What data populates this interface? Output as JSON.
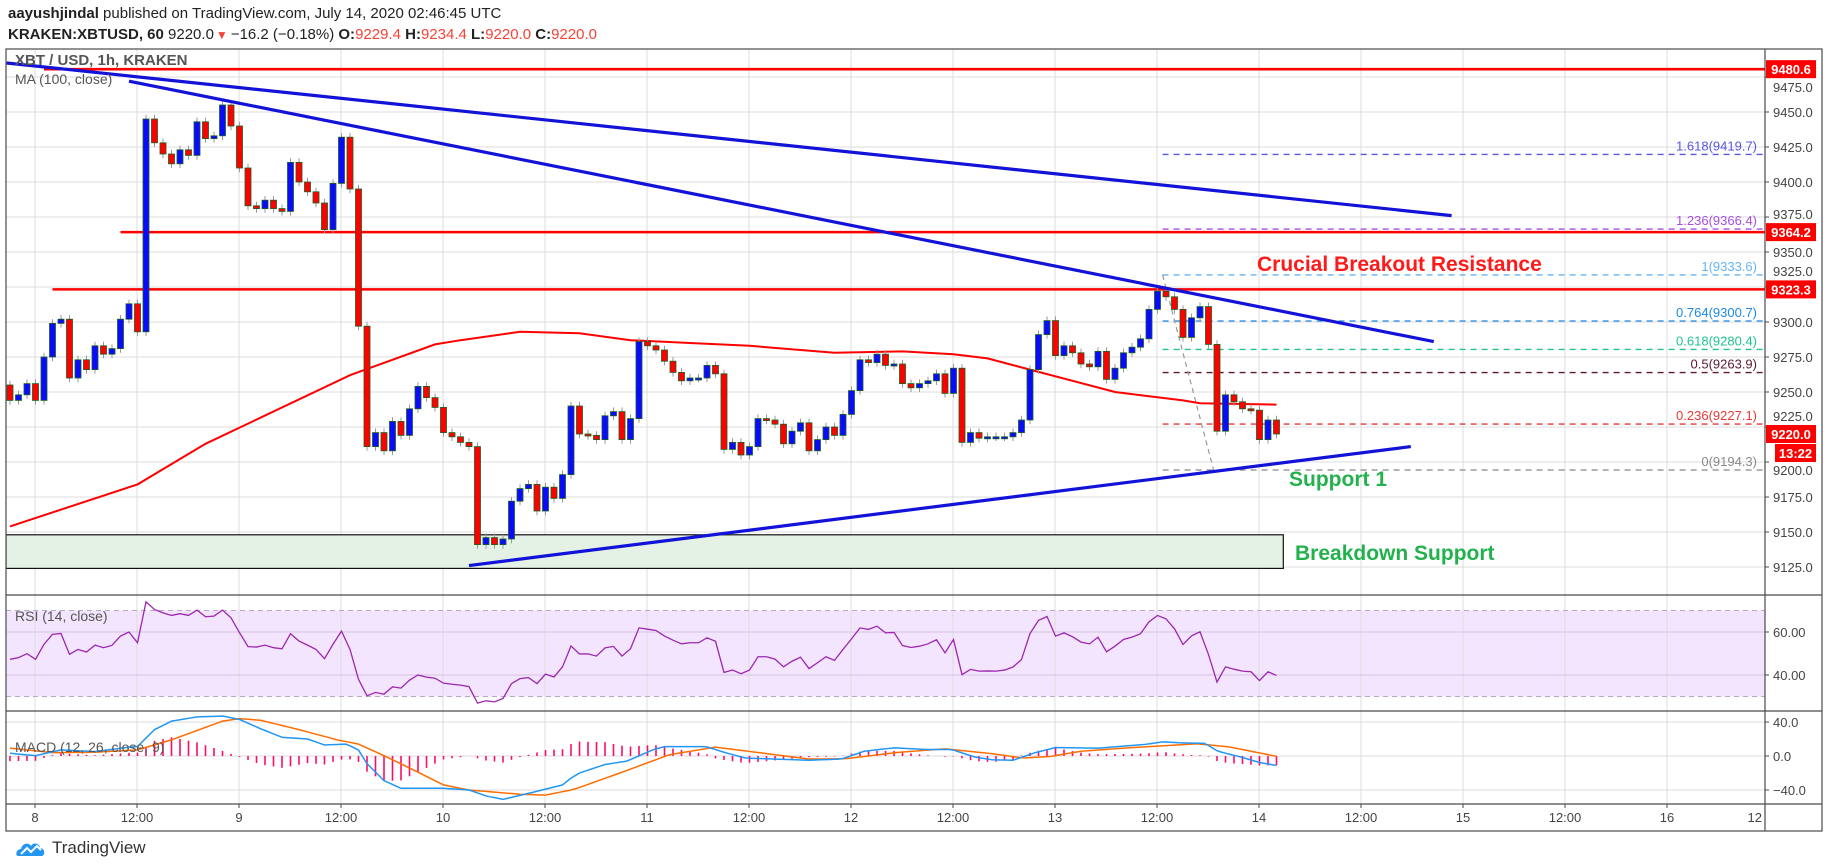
{
  "header": {
    "author": "aayushjindal",
    "published": "published on TradingView.com, July 14, 2020 02:46:45 UTC",
    "symbol": "KRAKEN:XBTUSD, 60",
    "last": "9220.0",
    "direction_icon": "triangle-down-icon",
    "change": "−16.2 (−0.18%)",
    "o_label": "O:",
    "o": "9229.4",
    "h_label": "H:",
    "h": "9234.4",
    "l_label": "L:",
    "l": "9220.0",
    "c_label": "C:",
    "c": "9220.0"
  },
  "chart": {
    "title": "XBT / USD, 1h, KRAKEN",
    "ma_label": "MA (100, close)",
    "rsi_label": "RSI (14, close)",
    "macd_label": "MACD (12, 26, close, 9)"
  },
  "colors": {
    "up_candle": "#0a0aff",
    "down_candle": "#ff0000",
    "candle_border": "#1b5e20",
    "ma": "#ff0000",
    "trendline": "#1212d8",
    "level": "#ff0000",
    "rsi": "#9c27b0",
    "rsi_band": "#f3e5fd",
    "macd": "#2196f3",
    "signal": "#ff6d00",
    "histogram": "#ff0a6c",
    "support_zone": "#e4f2e5",
    "resistance_text": "#ff1a1a",
    "support_text": "#22b14c"
  },
  "price_axis": {
    "ticks": [
      "9125.0",
      "9150.0",
      "9175.0",
      "9200.0",
      "9225.0",
      "9250.0",
      "9275.0",
      "9300.0",
      "9325.0",
      "9350.0",
      "9375.0",
      "9400.0",
      "9425.0",
      "9450.0",
      "9475.0"
    ]
  },
  "rsi_axis": {
    "ticks": [
      "60.00",
      "40.00"
    ],
    "upper": 70,
    "lower": 30
  },
  "macd_axis": {
    "ticks": [
      "40.0",
      "0.0",
      "−40.0"
    ]
  },
  "time_axis": {
    "labels": [
      "8",
      "12:00",
      "9",
      "12:00",
      "10",
      "12:00",
      "11",
      "12:00",
      "12",
      "12:00",
      "13",
      "12:00",
      "14",
      "12:00",
      "15",
      "12:00",
      "16",
      "12"
    ]
  },
  "price_tags": [
    {
      "label": "9480.6",
      "price": 9480.6
    },
    {
      "label": "9364.2",
      "price": 9364.2
    },
    {
      "label": "9323.3",
      "price": 9323.3
    },
    {
      "label": "9220.0",
      "price": 9220.0
    }
  ],
  "countdown": "13:22",
  "candles": {
    "first_open": 9255,
    "closes": [
      9244,
      9248,
      9256,
      9244,
      9275,
      9299,
      9302,
      9260,
      9273,
      9266,
      9283,
      9277,
      9281,
      9302,
      9313,
      9293,
      9445,
      9428,
      9420,
      9413,
      9423,
      9419,
      9443,
      9431,
      9433,
      9455,
      9440,
      9410,
      9383,
      9381,
      9387,
      9381,
      9379,
      9414,
      9400,
      9393,
      9385,
      9366,
      9399,
      9432,
      9395,
      9297,
      9211,
      9221,
      9208,
      9229,
      9219,
      9238,
      9254,
      9246,
      9239,
      9221,
      9218,
      9214,
      9211,
      9141,
      9146,
      9141,
      9145,
      9172,
      9181,
      9184,
      9165,
      9182,
      9174,
      9191,
      9240,
      9220,
      9219,
      9216,
      9233,
      9236,
      9216,
      9231,
      9286,
      9283,
      9280,
      9272,
      9264,
      9258,
      9260,
      9260,
      9269,
      9263,
      9209,
      9214,
      9205,
      9211,
      9231,
      9230,
      9227,
      9213,
      9222,
      9228,
      9208,
      9216,
      9225,
      9219,
      9234,
      9251,
      9273,
      9271,
      9277,
      9269,
      9270,
      9256,
      9253,
      9256,
      9258,
      9263,
      9249,
      9267,
      9214,
      9221,
      9217,
      9218,
      9218,
      9218,
      9221,
      9230,
      9266,
      9291,
      9301,
      9276,
      9283,
      9278,
      9270,
      9268,
      9279,
      9259,
      9267,
      9278,
      9282,
      9288,
      9309,
      9322,
      9318,
      9309,
      9289,
      9303,
      9311,
      9284,
      9222,
      9248,
      9243,
      9238,
      9237,
      9216,
      9230,
      9220
    ]
  },
  "ma100": [
    [
      0,
      9154
    ],
    [
      15,
      9184
    ],
    [
      23,
      9213
    ],
    [
      40,
      9262
    ],
    [
      50,
      9284
    ],
    [
      53,
      9287
    ],
    [
      60,
      9293
    ],
    [
      67,
      9292
    ],
    [
      73,
      9287
    ],
    [
      80,
      9285
    ],
    [
      87,
      9283
    ],
    [
      97,
      9278
    ],
    [
      105,
      9279
    ],
    [
      111,
      9277
    ],
    [
      115,
      9274
    ],
    [
      120,
      9266
    ],
    [
      130,
      9250
    ],
    [
      138,
      9244
    ],
    [
      140,
      9242
    ],
    [
      149,
      9241
    ]
  ],
  "rsi": [
    47.3,
    48.1,
    49.9,
    47.3,
    54.3,
    58.9,
    59.3,
    49.6,
    51.9,
    50.7,
    53.9,
    52.7,
    53.8,
    58.1,
    60,
    55,
    74,
    70.5,
    68.9,
    67.7,
    68.5,
    67.7,
    70.2,
    67.1,
    67.4,
    70.2,
    66.6,
    59.7,
    53.2,
    53,
    53.9,
    52.7,
    52.2,
    59.2,
    55.8,
    53.9,
    51.9,
    47.6,
    54.3,
    60.4,
    51.9,
    38,
    30.3,
    31.9,
    31.1,
    34.5,
    33.9,
    37.6,
    40,
    39,
    38.5,
    36.2,
    35.7,
    35.3,
    34.6,
    26.9,
    28,
    27.5,
    29.1,
    36,
    38.3,
    38.8,
    36,
    40.4,
    39.1,
    43.8,
    53.5,
    49.8,
    49.8,
    48.8,
    52.6,
    53.3,
    48.8,
    52.2,
    61.9,
    61.3,
    60.7,
    58.1,
    56.2,
    54.5,
    55,
    55,
    57.3,
    55.7,
    41.2,
    42.3,
    40.6,
    42.3,
    48.5,
    48.5,
    47.4,
    43.8,
    46.4,
    48.3,
    43,
    45.7,
    48.5,
    46.8,
    51.9,
    56.8,
    61.9,
    61.2,
    62.7,
    59.6,
    59.8,
    53.7,
    52.8,
    53.4,
    54.5,
    56.4,
    50.3,
    56.5,
    40.2,
    42.6,
    41.8,
    41.9,
    41.8,
    42.3,
    43.7,
    47.2,
    59.3,
    65.4,
    67.2,
    58.1,
    59.6,
    57.8,
    55.3,
    54.5,
    57.6,
    50.8,
    53.4,
    56.5,
    57.6,
    59.2,
    64.7,
    67.7,
    66.1,
    61.5,
    54.2,
    58.2,
    60.1,
    49.5,
    36.7,
    43.8,
    42.7,
    41.8,
    41.5,
    37.4,
    41.5,
    39.8
  ],
  "macd": [
    [
      0,
      3.2
    ],
    [
      3,
      0.4
    ],
    [
      6,
      7.2
    ],
    [
      10,
      5.2
    ],
    [
      14,
      10.4
    ],
    [
      15,
      11.2
    ],
    [
      17,
      31
    ],
    [
      19,
      41
    ],
    [
      22,
      46
    ],
    [
      25,
      47
    ],
    [
      27,
      43
    ],
    [
      29.5,
      32
    ],
    [
      32,
      22
    ],
    [
      35,
      20
    ],
    [
      37,
      13
    ],
    [
      39.6,
      14
    ],
    [
      41,
      7
    ],
    [
      42,
      -9
    ],
    [
      44,
      -29
    ],
    [
      46,
      -38
    ],
    [
      51,
      -38
    ],
    [
      54,
      -40
    ],
    [
      56,
      -47
    ],
    [
      58,
      -51
    ],
    [
      61,
      -44
    ],
    [
      63,
      -39
    ],
    [
      65,
      -34
    ],
    [
      66,
      -26
    ],
    [
      67,
      -20
    ],
    [
      70,
      -10
    ],
    [
      72.6,
      -6
    ],
    [
      75.7,
      7.6
    ],
    [
      77,
      11
    ],
    [
      81.9,
      11
    ],
    [
      84,
      4.4
    ],
    [
      86.5,
      -2.4
    ],
    [
      94,
      -5
    ],
    [
      97.8,
      -3.6
    ],
    [
      100.5,
      5.6
    ],
    [
      104,
      9.6
    ],
    [
      108,
      7.6
    ],
    [
      110.8,
      7.6
    ],
    [
      113.5,
      -1.2
    ],
    [
      115.5,
      -4.4
    ],
    [
      118,
      -5
    ],
    [
      120.5,
      3.6
    ],
    [
      123,
      10
    ],
    [
      128,
      9.2
    ],
    [
      133.5,
      13.6
    ],
    [
      135.7,
      16.8
    ],
    [
      137.4,
      15.6
    ],
    [
      140.6,
      14.8
    ],
    [
      142.1,
      5.6
    ],
    [
      144.8,
      -1.2
    ],
    [
      147,
      -7.6
    ],
    [
      149,
      -11.2
    ]
  ],
  "signal": [
    [
      0,
      9.2
    ],
    [
      5,
      4
    ],
    [
      10,
      4.4
    ],
    [
      15,
      7.2
    ],
    [
      19,
      19
    ],
    [
      25,
      41
    ],
    [
      27,
      44
    ],
    [
      29.5,
      42
    ],
    [
      34,
      31
    ],
    [
      38.5,
      19
    ],
    [
      41,
      14
    ],
    [
      44,
      0.4
    ],
    [
      48,
      -19
    ],
    [
      51,
      -34
    ],
    [
      54,
      -40
    ],
    [
      60,
      -45
    ],
    [
      63,
      -46
    ],
    [
      66,
      -40
    ],
    [
      67,
      -37
    ],
    [
      72.3,
      -18
    ],
    [
      77.6,
      1.6
    ],
    [
      83,
      10.4
    ],
    [
      88.4,
      3.6
    ],
    [
      94,
      -3.6
    ],
    [
      98.3,
      -3.2
    ],
    [
      104.6,
      4.4
    ],
    [
      110,
      8.4
    ],
    [
      115.5,
      2.8
    ],
    [
      119.2,
      -2.4
    ],
    [
      122.5,
      -0.4
    ],
    [
      126,
      5.6
    ],
    [
      131.6,
      9.6
    ],
    [
      137,
      12.8
    ],
    [
      139.6,
      14.4
    ],
    [
      143.4,
      10.8
    ],
    [
      149,
      -0.4
    ]
  ],
  "trendlines": [
    {
      "name": "upper-trendline",
      "from": {
        "bar": -0.4,
        "price": 9485
      },
      "to": {
        "bar": 169.6,
        "price": 9376
      }
    },
    {
      "name": "bearish-trendline",
      "from": {
        "bar": 14,
        "price": 9472
      },
      "to": {
        "bar": 167.5,
        "price": 9286
      }
    },
    {
      "name": "support-trendline",
      "from": {
        "bar": 54,
        "price": 9126
      },
      "to": {
        "bar": 164.8,
        "price": 9211
      }
    }
  ],
  "levels": [
    {
      "price": 9480.6,
      "from_bar": 4
    },
    {
      "price": 9364.2,
      "from_bar": 13
    },
    {
      "price": 9323.3,
      "from_bar": 5
    }
  ],
  "support_zone": {
    "from_bar": -0.4,
    "to_bar": 149.8,
    "top": 9148,
    "bottom": 9124
  },
  "fib": {
    "from_bar": 135.6,
    "swing": {
      "from": {
        "bar": 135.6,
        "price": 9333.6
      },
      "to": {
        "bar": 141.6,
        "price": 9194.3
      }
    },
    "levels": [
      {
        "label": "1.618(9419.7)",
        "price": 9419.7,
        "color": "#5656e0"
      },
      {
        "label": "1.236(9366.4)",
        "price": 9366.4,
        "color": "#a64fe0"
      },
      {
        "label": "1(9333.6)",
        "price": 9333.6,
        "color": "#64b5f6"
      },
      {
        "label": "0.764(9300.7)",
        "price": 9300.7,
        "color": "#1e88e5"
      },
      {
        "label": "0.618(9280.4)",
        "price": 9280.4,
        "color": "#1fc48e"
      },
      {
        "label": "0.5(9263.9)",
        "price": 9263.9,
        "color": "#5d1a2e"
      },
      {
        "label": "0.236(9227.1)",
        "price": 9227.1,
        "color": "#e53935"
      },
      {
        "label": "0(9194.3)",
        "price": 9194.3,
        "color": "#888888"
      }
    ]
  },
  "annotations": {
    "resistance": "Crucial Breakout Resistance",
    "support1": "Support 1",
    "breakdown": "Breakdown Support"
  },
  "logo": {
    "text": "TradingView",
    "icon": "tradingview-cloud-icon"
  }
}
